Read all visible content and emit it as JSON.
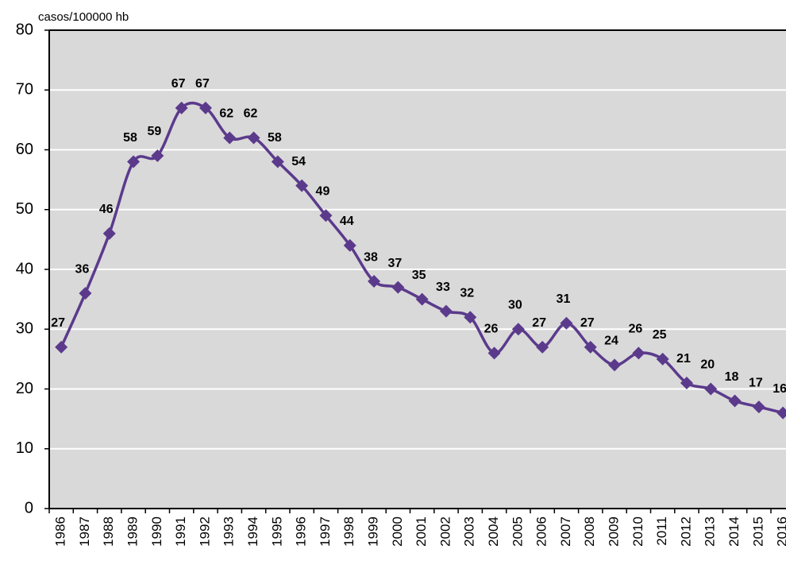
{
  "chart_data": {
    "type": "line",
    "y_label": "casos/100000 hb",
    "categories": [
      "1986",
      "1987",
      "1988",
      "1989",
      "1990",
      "1991",
      "1992",
      "1993",
      "1994",
      "1995",
      "1996",
      "1997",
      "1998",
      "1999",
      "2000",
      "2001",
      "2002",
      "2003",
      "2004",
      "2005",
      "2006",
      "2007",
      "2008",
      "2009",
      "2010",
      "2011",
      "2012",
      "2013",
      "2014",
      "2015",
      "2016"
    ],
    "values": [
      27,
      36,
      46,
      58,
      59,
      67,
      67,
      62,
      62,
      58,
      54,
      49,
      44,
      38,
      37,
      35,
      33,
      32,
      26,
      30,
      27,
      31,
      27,
      24,
      26,
      25,
      21,
      20,
      18,
      17,
      16
    ],
    "color": "#5b3a8c",
    "ylim": [
      0,
      80
    ],
    "yticks": [
      0,
      10,
      20,
      30,
      40,
      50,
      60,
      70,
      80
    ],
    "grid": true,
    "smooth": true,
    "data_labels": true
  }
}
